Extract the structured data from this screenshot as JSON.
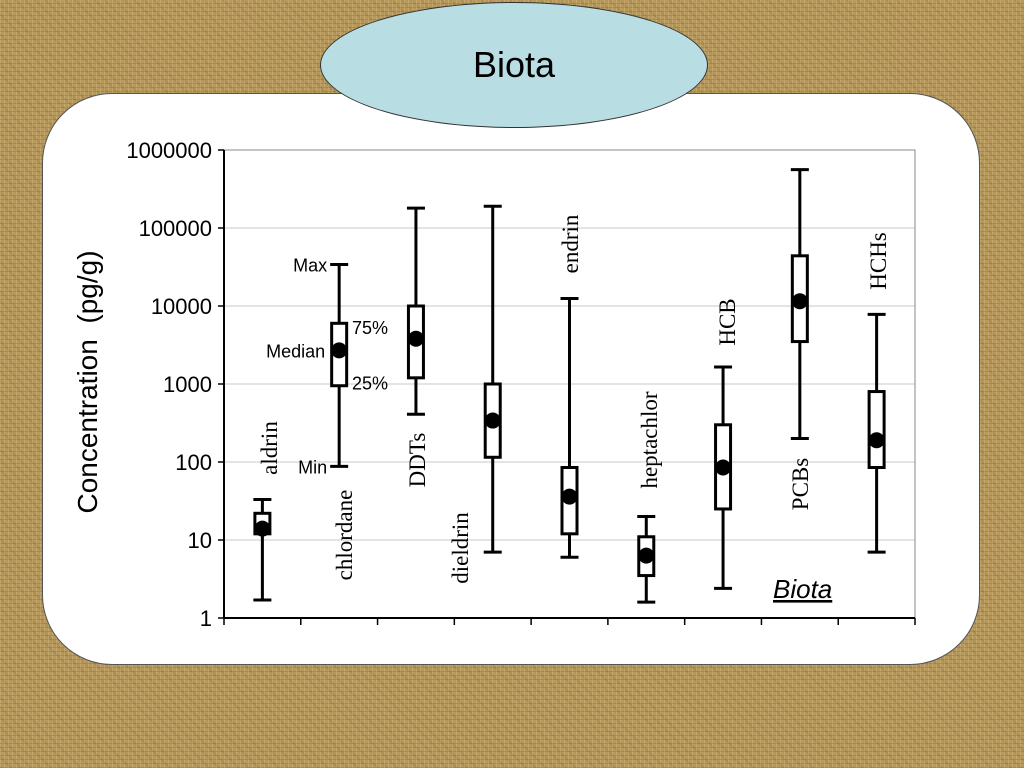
{
  "slide": {
    "title": "Biota"
  },
  "chart_data": {
    "type": "box",
    "title": "",
    "ylabel": "Concentration  (pg/g)",
    "inset_label": "Biota",
    "yscale": "log",
    "ylim": [
      1,
      1000000
    ],
    "yticks": [
      "1000000",
      "100000",
      "10000",
      "1000",
      "100",
      "10",
      "1"
    ],
    "grid": "horizontal",
    "legend_annotations": {
      "max": "Max",
      "q3": "75%",
      "median": "Median",
      "q1": "25%",
      "min": "Min"
    },
    "series": [
      {
        "name": "aldrin",
        "min": 1.7,
        "q1": 12,
        "median": 14,
        "q3": 22,
        "max": 33
      },
      {
        "name": "chlordane",
        "min": 88,
        "q1": 950,
        "median": 2700,
        "q3": 6000,
        "max": 34000
      },
      {
        "name": "DDTs",
        "min": 410,
        "q1": 1200,
        "median": 3800,
        "q3": 10000,
        "max": 180000
      },
      {
        "name": "dieldrin",
        "min": 7,
        "q1": 115,
        "median": 340,
        "q3": 1000,
        "max": 190000
      },
      {
        "name": "endrin",
        "min": 6,
        "q1": 12,
        "median": 36,
        "q3": 85,
        "max": 12500
      },
      {
        "name": "heptachlor",
        "min": 1.6,
        "q1": 3.5,
        "median": 6.3,
        "q3": 11,
        "max": 20
      },
      {
        "name": "HCB",
        "min": 2.4,
        "q1": 25,
        "median": 85,
        "q3": 300,
        "max": 1650
      },
      {
        "name": "PCBs",
        "min": 200,
        "q1": 3500,
        "median": 11500,
        "q3": 44000,
        "max": 560000
      },
      {
        "name": "HCHs",
        "min": 7,
        "q1": 85,
        "median": 190,
        "q3": 800,
        "max": 7800
      }
    ]
  }
}
